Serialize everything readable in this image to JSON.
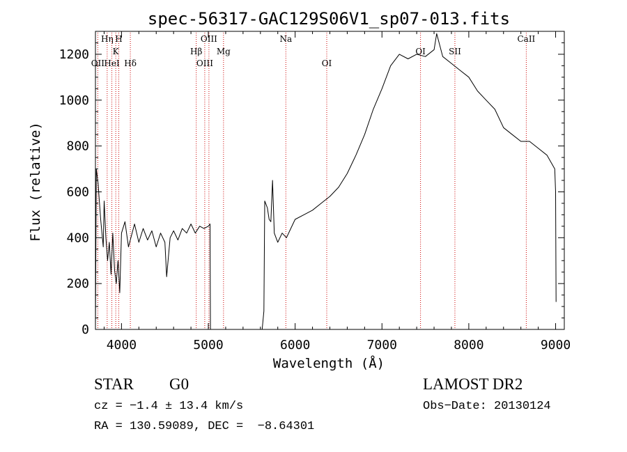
{
  "chart_data": {
    "type": "line",
    "title": "spec-56317-GAC129S06V1_sp07-013.fits",
    "xlabel": "Wavelength (Å)",
    "ylabel": "Flux (relative)",
    "xlim": [
      3700,
      9100
    ],
    "ylim": [
      0,
      1300
    ],
    "xticks": [
      4000,
      5000,
      6000,
      7000,
      8000,
      9000
    ],
    "yticks": [
      0,
      200,
      400,
      600,
      800,
      1000,
      1200
    ],
    "grid": false,
    "series": [
      {
        "color": "#000000",
        "segments": [
          [
            [
              3700,
              0
            ],
            [
              3710,
              700
            ],
            [
              3730,
              640
            ],
            [
              3760,
              480
            ],
            [
              3790,
              360
            ],
            [
              3800,
              560
            ],
            [
              3820,
              400
            ],
            [
              3840,
              300
            ],
            [
              3860,
              380
            ],
            [
              3880,
              240
            ],
            [
              3900,
              420
            ],
            [
              3920,
              260
            ],
            [
              3940,
              200
            ],
            [
              3960,
              300
            ],
            [
              3980,
              160
            ],
            [
              4000,
              420
            ],
            [
              4040,
              470
            ],
            [
              4080,
              360
            ],
            [
              4150,
              460
            ],
            [
              4200,
              380
            ],
            [
              4250,
              440
            ],
            [
              4300,
              390
            ],
            [
              4350,
              430
            ],
            [
              4400,
              360
            ],
            [
              4450,
              420
            ],
            [
              4500,
              380
            ],
            [
              4520,
              230
            ],
            [
              4560,
              400
            ],
            [
              4600,
              430
            ],
            [
              4650,
              390
            ],
            [
              4700,
              440
            ],
            [
              4750,
              420
            ],
            [
              4800,
              460
            ],
            [
              4850,
              420
            ],
            [
              4900,
              450
            ],
            [
              4950,
              440
            ],
            [
              5000,
              450
            ],
            [
              5020,
              460
            ],
            [
              5025,
              0
            ]
          ],
          [
            [
              5620,
              0
            ],
            [
              5640,
              80
            ],
            [
              5650,
              560
            ],
            [
              5680,
              530
            ],
            [
              5700,
              480
            ],
            [
              5720,
              470
            ],
            [
              5740,
              650
            ],
            [
              5760,
              420
            ],
            [
              5800,
              380
            ],
            [
              5850,
              420
            ],
            [
              5900,
              400
            ],
            [
              5950,
              440
            ],
            [
              6000,
              480
            ],
            [
              6100,
              500
            ],
            [
              6200,
              520
            ],
            [
              6300,
              550
            ],
            [
              6400,
              580
            ],
            [
              6500,
              620
            ],
            [
              6600,
              680
            ],
            [
              6700,
              760
            ],
            [
              6800,
              850
            ],
            [
              6900,
              960
            ],
            [
              7000,
              1050
            ],
            [
              7100,
              1150
            ],
            [
              7200,
              1200
            ],
            [
              7300,
              1180
            ],
            [
              7400,
              1200
            ],
            [
              7500,
              1190
            ],
            [
              7600,
              1220
            ],
            [
              7630,
              1290
            ],
            [
              7700,
              1190
            ],
            [
              7800,
              1160
            ],
            [
              7900,
              1130
            ],
            [
              8000,
              1100
            ],
            [
              8100,
              1040
            ],
            [
              8200,
              1000
            ],
            [
              8300,
              960
            ],
            [
              8400,
              880
            ],
            [
              8500,
              850
            ],
            [
              8600,
              820
            ],
            [
              8700,
              820
            ],
            [
              8800,
              790
            ],
            [
              8900,
              760
            ],
            [
              8960,
              720
            ],
            [
              8990,
              700
            ],
            [
              9000,
              600
            ],
            [
              9005,
              120
            ]
          ]
        ]
      }
    ],
    "lines": [
      {
        "label": "OII",
        "x": 3727,
        "row": 3
      },
      {
        "label": "Hη",
        "x": 3835,
        "row": 1
      },
      {
        "label": "HeI",
        "x": 3889,
        "row": 3
      },
      {
        "label": "K",
        "x": 3934,
        "row": 2
      },
      {
        "label": "H",
        "x": 3969,
        "row": 1
      },
      {
        "label": "Hδ",
        "x": 4102,
        "row": 3
      },
      {
        "label": "Hβ",
        "x": 4861,
        "row": 2
      },
      {
        "label": "OIII",
        "x": 4959,
        "row": 3
      },
      {
        "label": "OIII",
        "x": 5007,
        "row": 1
      },
      {
        "label": "Mg",
        "x": 5175,
        "row": 2
      },
      {
        "label": "Na",
        "x": 5893,
        "row": 1
      },
      {
        "label": "OI",
        "x": 6364,
        "row": 3
      },
      {
        "label": "OI",
        "x": 7444,
        "row": 2
      },
      {
        "label": "SII",
        "x": 7840,
        "row": 2
      },
      {
        "label": "CaII",
        "x": 8662,
        "row": 1
      }
    ]
  },
  "info": {
    "object_class": "STAR",
    "subclass": "G0",
    "survey": "LAMOST DR2",
    "redshift": "cz = −1.4 ± 13.4 km/s",
    "obs_date": "Obs−Date: 20130124",
    "coords": "RA = 130.59089, DEC =  −8.64301"
  },
  "colors": {
    "spectrum": "#000000",
    "line_marker": "#cc0000"
  }
}
